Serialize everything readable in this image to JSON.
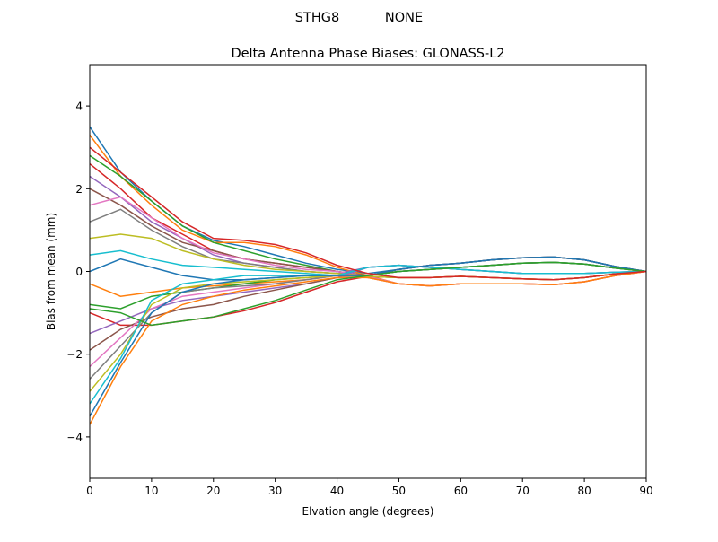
{
  "chart_data": {
    "type": "line",
    "suptitle": "STHG8           NONE",
    "title": "Delta Antenna Phase Biases: GLONASS-L2",
    "xlabel": "Elvation angle (degrees)",
    "ylabel": "Bias from mean (mm)",
    "xlim": [
      0,
      90
    ],
    "ylim": [
      -5,
      5
    ],
    "xticks": [
      0,
      10,
      20,
      30,
      40,
      50,
      60,
      70,
      80,
      90
    ],
    "yticks": [
      -4,
      -2,
      0,
      2,
      4
    ],
    "ytick_labels": [
      "−4",
      "−2",
      "0",
      "2",
      "4"
    ],
    "grid": false,
    "color_cycle": [
      "#1f77b4",
      "#ff7f0e",
      "#2ca02c",
      "#d62728",
      "#9467bd",
      "#8c564b",
      "#e377c2",
      "#7f7f7f",
      "#bcbd22",
      "#17becf"
    ],
    "x": [
      0,
      5,
      10,
      15,
      20,
      25,
      30,
      35,
      40,
      45,
      50,
      55,
      60,
      65,
      70,
      75,
      80,
      85,
      90
    ],
    "series": [
      {
        "values": [
          3.5,
          2.4,
          1.7,
          1.1,
          0.75,
          0.6,
          0.4,
          0.2,
          0.05,
          -0.05,
          0.05,
          0.15,
          0.2,
          0.28,
          0.33,
          0.35,
          0.28,
          0.12,
          0
        ]
      },
      {
        "values": [
          3.3,
          2.3,
          1.6,
          1.0,
          0.7,
          0.7,
          0.6,
          0.4,
          0.1,
          -0.1,
          -0.3,
          -0.35,
          -0.3,
          -0.3,
          -0.3,
          -0.32,
          -0.25,
          -0.1,
          0
        ]
      },
      {
        "values": [
          2.8,
          2.3,
          1.7,
          1.1,
          0.7,
          0.5,
          0.3,
          0.15,
          0.0,
          -0.1,
          0,
          0.05,
          0.1,
          0.15,
          0.2,
          0.22,
          0.18,
          0.08,
          0
        ]
      },
      {
        "values": [
          2.6,
          2.0,
          1.3,
          0.9,
          0.5,
          0.3,
          0.2,
          0.1,
          0.0,
          -0.12,
          -0.15,
          -0.15,
          -0.12,
          -0.15,
          -0.18,
          -0.2,
          -0.15,
          -0.06,
          0
        ]
      },
      {
        "values": [
          2.3,
          1.8,
          1.2,
          0.8,
          0.4,
          0.2,
          0.1,
          0.0,
          -0.05,
          0.1,
          0.15,
          0.1,
          0.05,
          0,
          -0.05,
          -0.05,
          -0.05,
          -0.02,
          0
        ]
      },
      {
        "values": [
          2.0,
          1.6,
          1.1,
          0.7,
          0.5,
          0.3,
          0.2,
          0.1,
          0.0,
          -0.1,
          0.05,
          0.15,
          0.2,
          0.28,
          0.33,
          0.35,
          0.28,
          0.12,
          0
        ]
      },
      {
        "values": [
          1.6,
          1.8,
          1.3,
          0.8,
          0.45,
          0.3,
          0.15,
          0.05,
          0.0,
          -0.12,
          -0.3,
          -0.35,
          -0.3,
          -0.3,
          -0.3,
          -0.32,
          -0.25,
          -0.1,
          0
        ]
      },
      {
        "values": [
          1.2,
          1.5,
          1.0,
          0.6,
          0.3,
          0.2,
          0.1,
          0.0,
          -0.05,
          -0.1,
          0,
          0.05,
          0.1,
          0.15,
          0.2,
          0.22,
          0.18,
          0.08,
          0
        ]
      },
      {
        "values": [
          0.8,
          0.9,
          0.8,
          0.5,
          0.3,
          0.15,
          0.05,
          0.0,
          -0.05,
          -0.12,
          -0.15,
          -0.15,
          -0.12,
          -0.15,
          -0.18,
          -0.2,
          -0.15,
          -0.06,
          0
        ]
      },
      {
        "values": [
          0.4,
          0.5,
          0.3,
          0.15,
          0.1,
          0.05,
          0.0,
          -0.05,
          -0.1,
          0.1,
          0.15,
          0.1,
          0.05,
          0,
          -0.05,
          -0.05,
          -0.05,
          -0.02,
          0
        ]
      },
      {
        "values": [
          0.0,
          0.3,
          0.1,
          -0.1,
          -0.2,
          -0.2,
          -0.15,
          -0.1,
          -0.1,
          -0.1,
          0.05,
          0.15,
          0.2,
          0.28,
          0.33,
          0.35,
          0.28,
          0.12,
          0
        ]
      },
      {
        "values": [
          -0.3,
          -0.6,
          -0.5,
          -0.4,
          -0.35,
          -0.3,
          -0.25,
          -0.2,
          -0.1,
          -0.15,
          -0.3,
          -0.35,
          -0.3,
          -0.3,
          -0.3,
          -0.32,
          -0.25,
          -0.1,
          0
        ]
      },
      {
        "values": [
          -0.8,
          -0.9,
          -0.6,
          -0.5,
          -0.4,
          -0.3,
          -0.2,
          -0.15,
          -0.1,
          -0.1,
          0,
          0.05,
          0.1,
          0.15,
          0.2,
          0.22,
          0.18,
          0.08,
          0
        ]
      },
      {
        "values": [
          -1.0,
          -1.3,
          -1.3,
          -1.2,
          -1.1,
          -0.95,
          -0.75,
          -0.5,
          -0.25,
          -0.12,
          -0.15,
          -0.15,
          -0.12,
          -0.15,
          -0.18,
          -0.2,
          -0.15,
          -0.06,
          0
        ]
      },
      {
        "values": [
          -1.5,
          -1.2,
          -0.9,
          -0.7,
          -0.6,
          -0.5,
          -0.4,
          -0.3,
          -0.15,
          0.1,
          0.15,
          0.1,
          0.05,
          0,
          -0.05,
          -0.05,
          -0.05,
          -0.02,
          0
        ]
      },
      {
        "values": [
          -1.9,
          -1.4,
          -1.1,
          -0.9,
          -0.8,
          -0.6,
          -0.45,
          -0.3,
          -0.15,
          -0.1,
          0.05,
          0.15,
          0.2,
          0.28,
          0.33,
          0.35,
          0.28,
          0.12,
          0
        ]
      },
      {
        "values": [
          -2.3,
          -1.6,
          -0.9,
          -0.6,
          -0.5,
          -0.4,
          -0.3,
          -0.2,
          -0.1,
          -0.15,
          -0.3,
          -0.35,
          -0.3,
          -0.3,
          -0.3,
          -0.32,
          -0.25,
          -0.1,
          0
        ]
      },
      {
        "values": [
          -2.6,
          -1.8,
          -1.0,
          -0.5,
          -0.4,
          -0.35,
          -0.3,
          -0.2,
          -0.1,
          -0.1,
          0,
          0.05,
          0.1,
          0.15,
          0.2,
          0.22,
          0.18,
          0.08,
          0
        ]
      },
      {
        "values": [
          -2.9,
          -2.0,
          -0.8,
          -0.4,
          -0.3,
          -0.25,
          -0.2,
          -0.15,
          -0.1,
          -0.12,
          -0.15,
          -0.15,
          -0.12,
          -0.15,
          -0.18,
          -0.2,
          -0.15,
          -0.06,
          0
        ]
      },
      {
        "values": [
          -3.2,
          -2.1,
          -0.7,
          -0.3,
          -0.2,
          -0.1,
          -0.1,
          -0.1,
          -0.1,
          0.1,
          0.15,
          0.1,
          0.05,
          0,
          -0.05,
          -0.05,
          -0.05,
          -0.02,
          0
        ]
      },
      {
        "values": [
          -3.5,
          -2.2,
          -1.0,
          -0.5,
          -0.3,
          -0.2,
          -0.15,
          -0.1,
          -0.1,
          -0.1,
          0.05,
          0.15,
          0.2,
          0.28,
          0.33,
          0.35,
          0.28,
          0.12,
          0
        ]
      },
      {
        "values": [
          -3.7,
          -2.3,
          -1.2,
          -0.8,
          -0.6,
          -0.45,
          -0.35,
          -0.25,
          -0.15,
          -0.15,
          -0.3,
          -0.35,
          -0.3,
          -0.3,
          -0.3,
          -0.32,
          -0.25,
          -0.1,
          0
        ]
      },
      {
        "values": [
          -0.9,
          -1.0,
          -1.3,
          -1.2,
          -1.1,
          -0.9,
          -0.7,
          -0.45,
          -0.2,
          -0.1,
          0,
          0.05,
          0.1,
          0.15,
          0.2,
          0.22,
          0.18,
          0.08,
          0
        ]
      },
      {
        "values": [
          3.0,
          2.4,
          1.8,
          1.2,
          0.8,
          0.75,
          0.65,
          0.45,
          0.15,
          -0.05,
          -0.15,
          -0.15,
          -0.12,
          -0.15,
          -0.18,
          -0.2,
          -0.15,
          -0.06,
          0
        ]
      }
    ]
  }
}
